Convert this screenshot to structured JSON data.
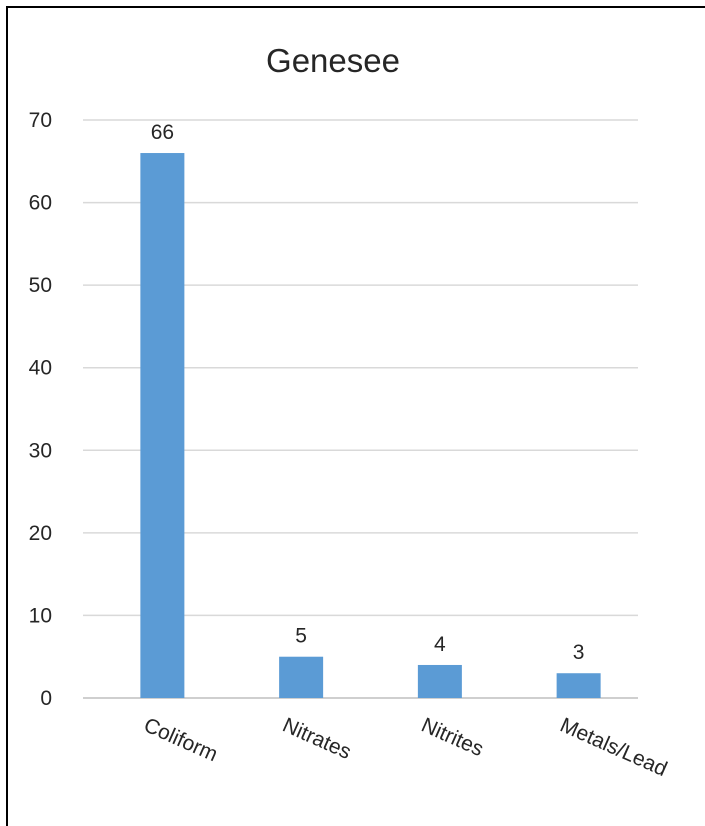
{
  "chart_data": {
    "type": "bar",
    "title": "Genesee",
    "xlabel": "",
    "ylabel": "",
    "categories": [
      "Coliform",
      "Nitrates",
      "Nitrites",
      "Metals/Lead"
    ],
    "values": [
      66,
      5,
      4,
      3
    ],
    "ylim": [
      0,
      70
    ],
    "yticks": [
      0,
      10,
      20,
      30,
      40,
      50,
      60,
      70
    ],
    "grid": true,
    "legend": "none",
    "bar_color": "#5b9bd5"
  }
}
